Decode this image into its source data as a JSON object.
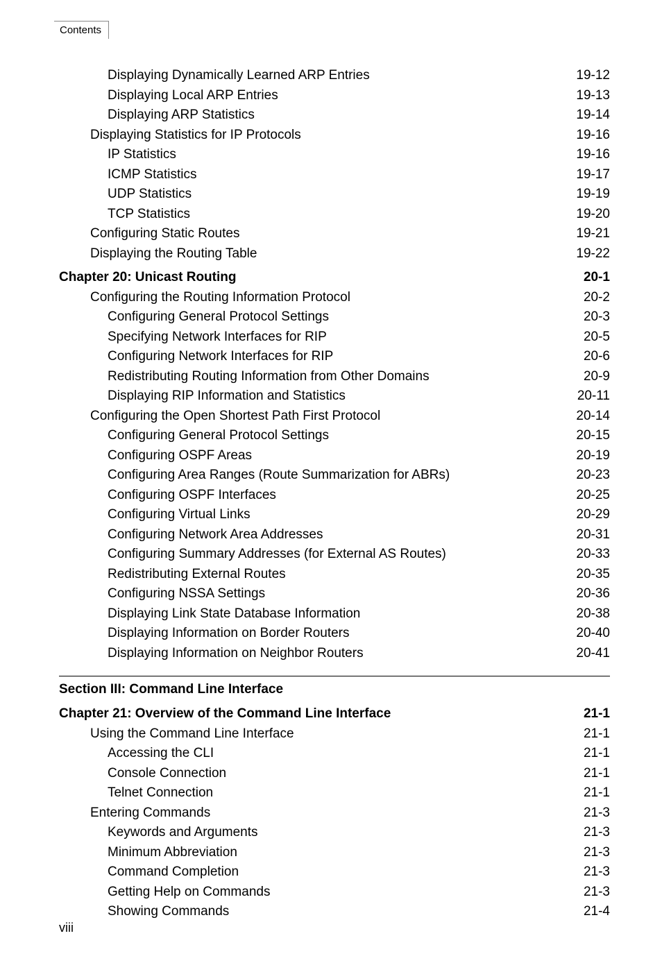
{
  "header": {
    "tab_label": "Contents"
  },
  "footer": {
    "page_number": "viii"
  },
  "block1": [
    {
      "indent": 3,
      "title": "Displaying Dynamically Learned ARP Entries",
      "page": "19-12"
    },
    {
      "indent": 3,
      "title": "Displaying Local ARP Entries",
      "page": "19-13"
    },
    {
      "indent": 3,
      "title": "Displaying ARP Statistics",
      "page": "19-14"
    },
    {
      "indent": 2,
      "title": "Displaying Statistics for IP Protocols",
      "page": "19-16"
    },
    {
      "indent": 3,
      "title": "IP Statistics",
      "page": "19-16"
    },
    {
      "indent": 3,
      "title": "ICMP Statistics",
      "page": "19-17"
    },
    {
      "indent": 3,
      "title": "UDP Statistics",
      "page": "19-19"
    },
    {
      "indent": 3,
      "title": "TCP Statistics",
      "page": "19-20"
    },
    {
      "indent": 2,
      "title": "Configuring Static Routes",
      "page": "19-21"
    },
    {
      "indent": 2,
      "title": "Displaying the Routing Table",
      "page": "19-22"
    }
  ],
  "block2": [
    {
      "indent": 0,
      "title": "Chapter 20: Unicast Routing",
      "page": "20-1",
      "bold": true
    },
    {
      "indent": 2,
      "title": "Configuring the Routing Information Protocol",
      "page": "20-2"
    },
    {
      "indent": 3,
      "title": "Configuring General Protocol Settings",
      "page": "20-3"
    },
    {
      "indent": 3,
      "title": "Specifying Network Interfaces for RIP",
      "page": "20-5"
    },
    {
      "indent": 3,
      "title": "Configuring Network Interfaces for RIP",
      "page": "20-6"
    },
    {
      "indent": 3,
      "title": "Redistributing Routing Information from Other Domains",
      "page": "20-9"
    },
    {
      "indent": 3,
      "title": "Displaying RIP Information and Statistics",
      "page": "20-11"
    },
    {
      "indent": 2,
      "title": "Configuring the Open Shortest Path First Protocol",
      "page": "20-14"
    },
    {
      "indent": 3,
      "title": "Configuring General Protocol Settings",
      "page": "20-15"
    },
    {
      "indent": 3,
      "title": "Configuring OSPF Areas",
      "page": "20-19"
    },
    {
      "indent": 3,
      "title": "Configuring Area Ranges (Route Summarization for ABRs)",
      "page": "20-23"
    },
    {
      "indent": 3,
      "title": "Configuring OSPF Interfaces",
      "page": "20-25"
    },
    {
      "indent": 3,
      "title": "Configuring Virtual Links",
      "page": "20-29"
    },
    {
      "indent": 3,
      "title": "Configuring Network Area Addresses",
      "page": "20-31"
    },
    {
      "indent": 3,
      "title": "Configuring Summary Addresses (for External AS Routes)",
      "page": "20-33"
    },
    {
      "indent": 3,
      "title": "Redistributing External Routes",
      "page": "20-35"
    },
    {
      "indent": 3,
      "title": "Configuring NSSA Settings",
      "page": "20-36"
    },
    {
      "indent": 3,
      "title": "Displaying Link State Database Information",
      "page": "20-38"
    },
    {
      "indent": 3,
      "title": "Displaying Information on Border Routers",
      "page": "20-40"
    },
    {
      "indent": 3,
      "title": "Displaying Information on Neighbor Routers",
      "page": "20-41"
    }
  ],
  "section_heading": "Section III: Command Line Interface",
  "block3": [
    {
      "indent": 0,
      "title": "Chapter 21: Overview of the Command Line Interface",
      "page": "21-1",
      "bold": true
    },
    {
      "indent": 2,
      "title": "Using the Command Line Interface",
      "page": "21-1"
    },
    {
      "indent": 3,
      "title": "Accessing the CLI",
      "page": "21-1"
    },
    {
      "indent": 3,
      "title": "Console Connection",
      "page": "21-1"
    },
    {
      "indent": 3,
      "title": "Telnet Connection",
      "page": "21-1"
    },
    {
      "indent": 2,
      "title": "Entering Commands",
      "page": "21-3"
    },
    {
      "indent": 3,
      "title": "Keywords and Arguments",
      "page": "21-3"
    },
    {
      "indent": 3,
      "title": "Minimum Abbreviation",
      "page": "21-3"
    },
    {
      "indent": 3,
      "title": "Command Completion",
      "page": "21-3"
    },
    {
      "indent": 3,
      "title": "Getting Help on Commands",
      "page": "21-3"
    },
    {
      "indent": 3,
      "title": "  Showing Commands",
      "page": "21-4"
    }
  ]
}
